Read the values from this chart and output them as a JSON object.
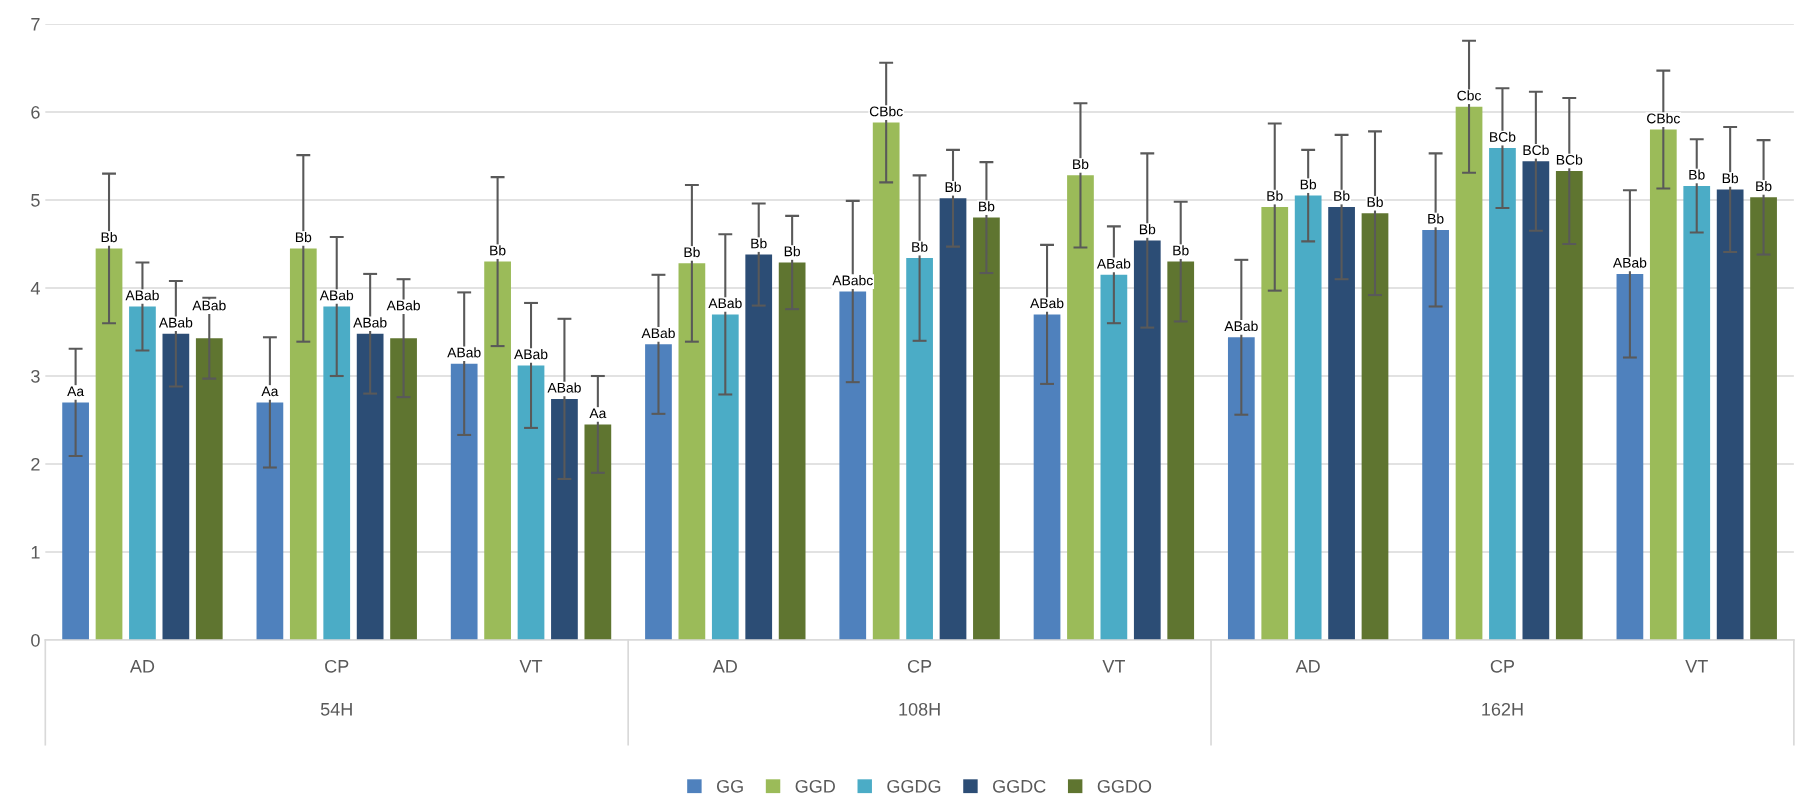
{
  "chart_data": {
    "type": "bar",
    "categories": [
      "AD",
      "CP",
      "VT",
      "AD",
      "CP",
      "VT",
      "AD",
      "CP",
      "VT"
    ],
    "annotations": [
      "54H",
      "108H",
      "162H"
    ],
    "ylim": [
      0,
      7
    ],
    "yticks": [
      0,
      1,
      2,
      3,
      4,
      5,
      6,
      7
    ],
    "grid": "y",
    "legend": "bottom",
    "series": [
      {
        "name": "GG",
        "color": "#4f81bd",
        "values": [
          2.7,
          2.7,
          3.14,
          3.36,
          3.96,
          3.7,
          3.44,
          4.66,
          4.16
        ],
        "errors": [
          0.61,
          0.74,
          0.81,
          0.79,
          1.03,
          0.79,
          0.88,
          0.87,
          0.95
        ],
        "value_labels": [
          "Aa",
          "Aa",
          "ABab",
          "ABab",
          "ABabc",
          "ABab",
          "ABab",
          "Bb",
          "ABab"
        ]
      },
      {
        "name": "GGD",
        "color": "#9bbb59",
        "values": [
          4.45,
          4.45,
          4.3,
          4.28,
          5.88,
          5.28,
          4.92,
          6.06,
          5.8
        ],
        "errors": [
          0.85,
          1.06,
          0.96,
          0.89,
          0.68,
          0.82,
          0.95,
          0.75,
          0.67
        ],
        "value_labels": [
          "Bb",
          "Bb",
          "Bb",
          "Bb",
          "CBbc",
          "Bb",
          "Bb",
          "Cbc",
          "CBbc"
        ]
      },
      {
        "name": "GGDG",
        "color": "#4bacc6",
        "values": [
          3.79,
          3.79,
          3.12,
          3.7,
          4.34,
          4.15,
          5.05,
          5.59,
          5.16
        ],
        "errors": [
          0.5,
          0.79,
          0.71,
          0.91,
          0.94,
          0.55,
          0.52,
          0.68,
          0.53
        ],
        "value_labels": [
          "ABab",
          "ABab",
          "ABab",
          "ABab",
          "Bb",
          "ABab",
          "Bb",
          "BCb",
          "Bb"
        ]
      },
      {
        "name": "GGDC",
        "color": "#2c4d75",
        "values": [
          3.48,
          3.48,
          2.74,
          4.38,
          5.02,
          4.54,
          4.92,
          5.44,
          5.12
        ],
        "errors": [
          0.6,
          0.68,
          0.91,
          0.58,
          0.55,
          0.99,
          0.82,
          0.79,
          0.71
        ],
        "value_labels": [
          "ABab",
          "ABab",
          "ABab",
          "Bb",
          "Bb",
          "Bb",
          "Bb",
          "BCb",
          "Bb"
        ]
      },
      {
        "name": "GGDO",
        "color": "#5f7530",
        "values": [
          3.43,
          3.43,
          2.45,
          4.29,
          4.8,
          4.3,
          4.85,
          5.33,
          5.03
        ],
        "errors": [
          0.46,
          0.67,
          0.55,
          0.53,
          0.63,
          0.68,
          0.93,
          0.83,
          0.65
        ],
        "value_labels": [
          "ABab",
          "ABab",
          "Aa",
          "Bb",
          "Bb",
          "Bb",
          "Bb",
          "BCb",
          "Bb"
        ]
      }
    ]
  }
}
